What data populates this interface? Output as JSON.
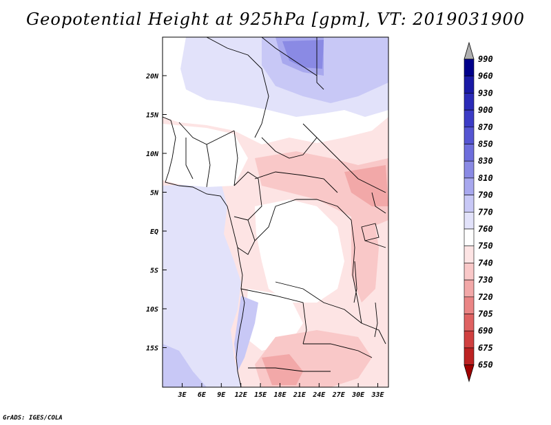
{
  "title": "Geopotential Height at 925hPa [gpm], VT: 2019031900",
  "credit": "GrADS: IGES/COLA",
  "lat_labels": [
    "20N",
    "15N",
    "10N",
    "5N",
    "EQ",
    "5S",
    "10S",
    "15S"
  ],
  "lon_labels": [
    "3E",
    "6E",
    "9E",
    "12E",
    "15E",
    "18E",
    "21E",
    "24E",
    "27E",
    "30E",
    "33E"
  ],
  "colorbar": {
    "levels": [
      "990",
      "960",
      "930",
      "900",
      "870",
      "850",
      "830",
      "810",
      "790",
      "770",
      "760",
      "750",
      "740",
      "730",
      "720",
      "705",
      "690",
      "675",
      "650"
    ],
    "colors": [
      "#00008b",
      "#1a1aa6",
      "#2b2bb8",
      "#3c3cc6",
      "#5555d2",
      "#6e6edc",
      "#8a8ae4",
      "#a8a8ee",
      "#c8c8f6",
      "#e2e2fa",
      "#ffffff",
      "#fde4e4",
      "#f9c8c8",
      "#f2a8a8",
      "#ea8585",
      "#df6262",
      "#d04040",
      "#bc2222",
      "#a00a0a"
    ],
    "top_arrow_color": "#b0b0b0",
    "bottom_arrow_color": "#a00000"
  }
}
